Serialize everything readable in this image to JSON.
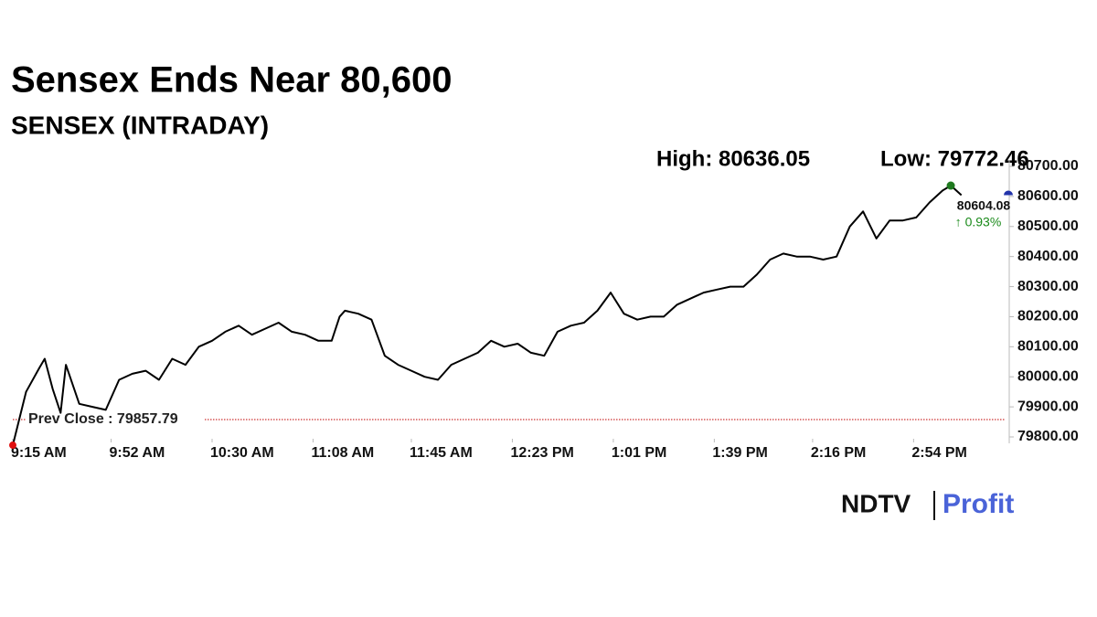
{
  "chart_data": {
    "type": "line",
    "title": "Sensex Ends Near 80,600",
    "subtitle": "SENSEX (INTRADAY)",
    "high_label": "High: 80636.05",
    "low_label": "Low: 79772.46",
    "last_value_label": "80604.08",
    "change_label": "↑ 0.93%",
    "prev_close": 79857.79,
    "prev_close_label": "Prev Close : 79857.79",
    "logo": {
      "left": "NDTV",
      "right": "Profit"
    },
    "color": "#000000",
    "x": [
      0,
      5,
      10,
      12,
      15,
      18,
      20,
      25,
      30,
      35,
      40,
      45,
      50,
      55,
      60,
      65,
      70,
      75,
      80,
      85,
      90,
      95,
      100,
      105,
      110,
      115,
      120,
      123,
      125,
      130,
      135,
      140,
      145,
      150,
      155,
      160,
      165,
      170,
      175,
      180,
      185,
      190,
      195,
      200,
      205,
      210,
      215,
      220,
      225,
      230,
      235,
      240,
      245,
      250,
      255,
      260,
      265,
      270,
      275,
      280,
      285,
      290,
      295,
      300,
      305,
      310,
      315,
      320,
      325,
      330,
      335,
      340,
      345,
      350,
      353,
      357
    ],
    "values": [
      79772.46,
      79950,
      80030,
      80060,
      79960,
      79880,
      80040,
      79910,
      79900,
      79890,
      79990,
      80010,
      80020,
      79990,
      80060,
      80040,
      80100,
      80120,
      80150,
      80170,
      80140,
      80160,
      80180,
      80150,
      80140,
      80120,
      80120,
      80200,
      80220,
      80210,
      80190,
      80070,
      80040,
      80020,
      80000,
      79990,
      80040,
      80060,
      80080,
      80120,
      80100,
      80110,
      80080,
      80070,
      80150,
      80170,
      80180,
      80220,
      80280,
      80210,
      80190,
      80200,
      80200,
      80240,
      80260,
      80280,
      80290,
      80300,
      80300,
      80340,
      80390,
      80410,
      80400,
      80400,
      80390,
      80400,
      80500,
      80550,
      80460,
      80520,
      80520,
      80530,
      80580,
      80620,
      80636.05,
      80604.08
    ],
    "xlim": [
      0,
      375
    ],
    "xticks": [
      {
        "value": 0,
        "label": "9:15 AM"
      },
      {
        "value": 37,
        "label": "9:52 AM"
      },
      {
        "value": 75,
        "label": "10:30 AM"
      },
      {
        "value": 113,
        "label": "11:08 AM"
      },
      {
        "value": 150,
        "label": "11:45 AM"
      },
      {
        "value": 188,
        "label": "12:23 PM"
      },
      {
        "value": 226,
        "label": "1:01 PM"
      },
      {
        "value": 264,
        "label": "1:39 PM"
      },
      {
        "value": 301,
        "label": "2:16 PM"
      },
      {
        "value": 339,
        "label": "2:54 PM"
      }
    ],
    "ylim": [
      79800,
      80700
    ],
    "yticks": [
      {
        "value": 79800,
        "label": "79800.00"
      },
      {
        "value": 79900,
        "label": "79900.00"
      },
      {
        "value": 80000,
        "label": "80000.00"
      },
      {
        "value": 80100,
        "label": "80100.00"
      },
      {
        "value": 80200,
        "label": "80200.00"
      },
      {
        "value": 80300,
        "label": "80300.00"
      },
      {
        "value": 80400,
        "label": "80400.00"
      },
      {
        "value": 80500,
        "label": "80500.00"
      },
      {
        "value": 80600,
        "label": "80600.00"
      },
      {
        "value": 80700,
        "label": "80700.00"
      }
    ]
  }
}
